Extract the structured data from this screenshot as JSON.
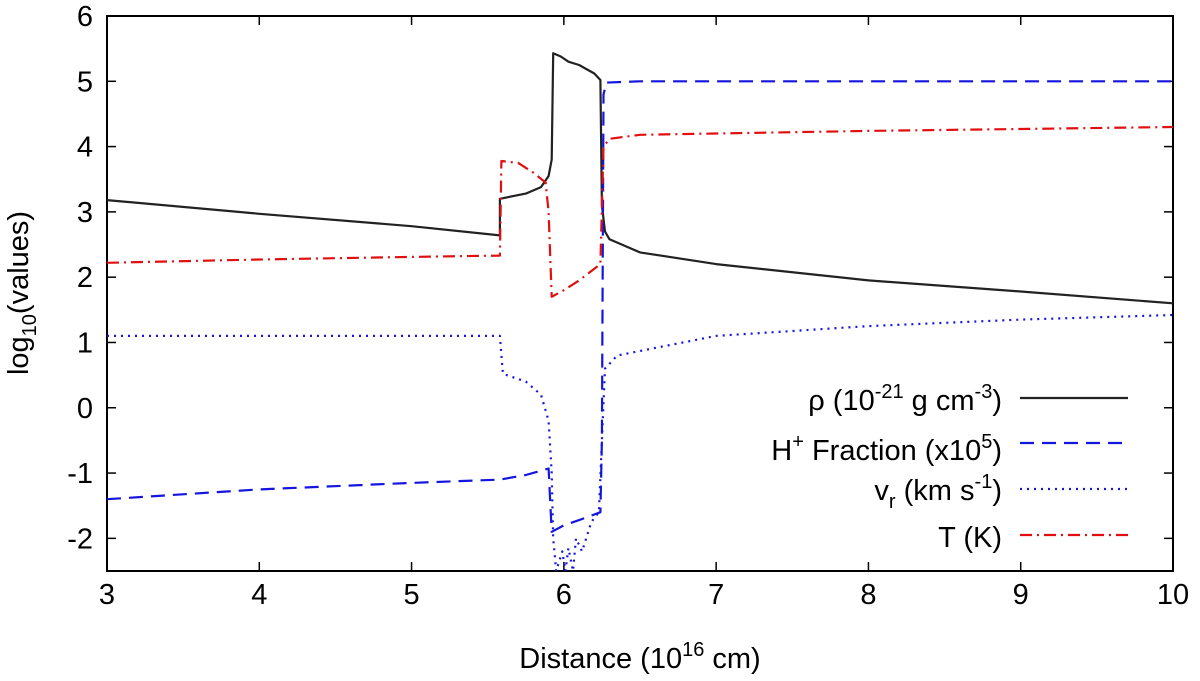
{
  "chart_data": {
    "type": "line",
    "title": "",
    "xlabel": "Distance (10^16 cm)",
    "ylabel": "log10(values)",
    "xlim": [
      3,
      10
    ],
    "ylim": [
      -2.5,
      6
    ],
    "xticks": [
      3,
      4,
      5,
      6,
      7,
      8,
      9,
      10
    ],
    "yticks": [
      -2,
      -1,
      0,
      1,
      2,
      3,
      4,
      5,
      6
    ],
    "grid": false,
    "legend_position": "bottom-right",
    "xlabel_parts": {
      "main": "Distance (10",
      "sup": "16",
      "tail": " cm)"
    },
    "ylabel_parts": {
      "main": "log",
      "sub": "10",
      "tail": "(values)"
    },
    "legend_labels": {
      "rho": {
        "a": "ρ (10",
        "sup": "-21",
        "b": " g cm",
        "sup2": "-3",
        "c": ")"
      },
      "hplus": {
        "a": "H",
        "sup": "+",
        "b": " Fraction (x10",
        "sup2": "5",
        "c": ")"
      },
      "vr": {
        "a": "v",
        "sub": "r",
        "b": " (km s",
        "sup": "-1",
        "c": ")"
      },
      "temp": {
        "a": "T (K)"
      }
    },
    "series": [
      {
        "name": "ρ (10^-21 g cm^-3)",
        "key": "rho",
        "color": "#222222",
        "dash": "solid",
        "points": [
          [
            3.0,
            3.18
          ],
          [
            4.0,
            2.97
          ],
          [
            5.0,
            2.78
          ],
          [
            5.58,
            2.64
          ],
          [
            5.58,
            3.2
          ],
          [
            5.75,
            3.28
          ],
          [
            5.85,
            3.38
          ],
          [
            5.9,
            3.55
          ],
          [
            5.92,
            3.8
          ],
          [
            5.93,
            5.43
          ],
          [
            5.98,
            5.38
          ],
          [
            6.03,
            5.3
          ],
          [
            6.1,
            5.25
          ],
          [
            6.2,
            5.12
          ],
          [
            6.24,
            5.02
          ],
          [
            6.25,
            3.1
          ],
          [
            6.27,
            2.7
          ],
          [
            6.3,
            2.58
          ],
          [
            6.5,
            2.38
          ],
          [
            7.0,
            2.2
          ],
          [
            8.0,
            1.95
          ],
          [
            9.0,
            1.78
          ],
          [
            10.0,
            1.6
          ]
        ]
      },
      {
        "name": "H+ Fraction (x10^5)",
        "key": "hplus",
        "color": "#1515e0",
        "dash": "dashed",
        "points": [
          [
            3.0,
            -1.4
          ],
          [
            4.0,
            -1.25
          ],
          [
            5.0,
            -1.15
          ],
          [
            5.58,
            -1.1
          ],
          [
            5.75,
            -1.03
          ],
          [
            5.9,
            -0.93
          ],
          [
            5.92,
            -1.9
          ],
          [
            6.0,
            -1.8
          ],
          [
            6.1,
            -1.72
          ],
          [
            6.24,
            -1.6
          ],
          [
            6.25,
            -0.5
          ],
          [
            6.26,
            4.8
          ],
          [
            6.28,
            4.98
          ],
          [
            6.5,
            5.0
          ],
          [
            10.0,
            5.0
          ]
        ]
      },
      {
        "name": "vr (km s^-1)",
        "key": "vr",
        "color": "#1515e0",
        "dash": "dotted",
        "points": [
          [
            3.0,
            1.1
          ],
          [
            5.58,
            1.1
          ],
          [
            5.6,
            0.52
          ],
          [
            5.75,
            0.4
          ],
          [
            5.85,
            0.2
          ],
          [
            5.9,
            -0.2
          ],
          [
            5.92,
            -1.0
          ],
          [
            5.93,
            -2.0
          ],
          [
            5.95,
            -2.5
          ],
          [
            5.99,
            -2.2
          ],
          [
            6.01,
            -2.5
          ],
          [
            6.03,
            -2.15
          ],
          [
            6.06,
            -2.5
          ],
          [
            6.08,
            -2.0
          ],
          [
            6.12,
            -2.2
          ],
          [
            6.18,
            -1.75
          ],
          [
            6.23,
            -1.6
          ],
          [
            6.25,
            -0.5
          ],
          [
            6.27,
            0.6
          ],
          [
            6.35,
            0.8
          ],
          [
            7.0,
            1.1
          ],
          [
            8.0,
            1.25
          ],
          [
            9.0,
            1.35
          ],
          [
            10.0,
            1.42
          ]
        ]
      },
      {
        "name": "T (K)",
        "key": "temp",
        "color": "#e01010",
        "dash": "dashdot",
        "points": [
          [
            3.0,
            2.22
          ],
          [
            4.0,
            2.27
          ],
          [
            5.0,
            2.31
          ],
          [
            5.58,
            2.33
          ],
          [
            5.59,
            3.78
          ],
          [
            5.7,
            3.75
          ],
          [
            5.8,
            3.6
          ],
          [
            5.88,
            3.45
          ],
          [
            5.9,
            3.0
          ],
          [
            5.92,
            1.7
          ],
          [
            6.0,
            1.8
          ],
          [
            6.1,
            1.95
          ],
          [
            6.24,
            2.2
          ],
          [
            6.26,
            4.0
          ],
          [
            6.3,
            4.12
          ],
          [
            6.5,
            4.18
          ],
          [
            7.0,
            4.2
          ],
          [
            8.0,
            4.24
          ],
          [
            9.0,
            4.27
          ],
          [
            10.0,
            4.3
          ]
        ]
      }
    ]
  }
}
